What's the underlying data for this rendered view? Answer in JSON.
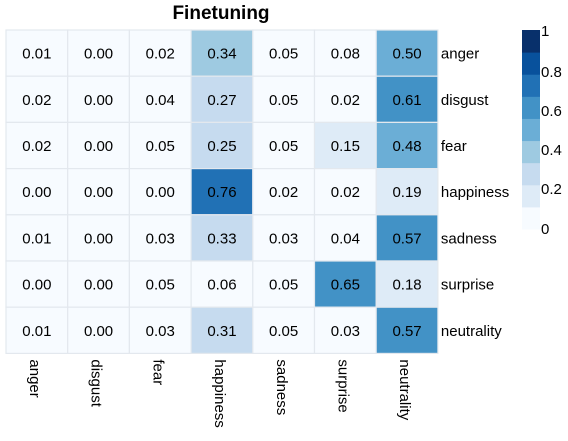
{
  "chart_data": {
    "type": "heatmap",
    "title": "Finetuning",
    "rows": [
      "anger",
      "disgust",
      "fear",
      "happiness",
      "sadness",
      "surprise",
      "neutrality"
    ],
    "columns": [
      "anger",
      "disgust",
      "fear",
      "happiness",
      "sadness",
      "surprise",
      "neutrality"
    ],
    "values": [
      [
        0.01,
        0.0,
        0.02,
        0.34,
        0.05,
        0.08,
        0.5
      ],
      [
        0.02,
        0.0,
        0.04,
        0.27,
        0.05,
        0.02,
        0.61
      ],
      [
        0.02,
        0.0,
        0.05,
        0.25,
        0.05,
        0.15,
        0.48
      ],
      [
        0.0,
        0.0,
        0.0,
        0.76,
        0.02,
        0.02,
        0.19
      ],
      [
        0.01,
        0.0,
        0.03,
        0.33,
        0.03,
        0.04,
        0.57
      ],
      [
        0.0,
        0.0,
        0.05,
        0.06,
        0.05,
        0.65,
        0.18
      ],
      [
        0.01,
        0.0,
        0.03,
        0.31,
        0.05,
        0.03,
        0.57
      ]
    ],
    "value_labels": [
      [
        "0.01",
        "0.00",
        "0.02",
        "0.34",
        "0.05",
        "0.08",
        "0.50"
      ],
      [
        "0.02",
        "0.00",
        "0.04",
        "0.27",
        "0.05",
        "0.02",
        "0.61"
      ],
      [
        "0.02",
        "0.00",
        "0.05",
        "0.25",
        "0.05",
        "0.15",
        "0.48"
      ],
      [
        "0.00",
        "0.00",
        "0.00",
        "0.76",
        "0.02",
        "0.02",
        "0.19"
      ],
      [
        "0.01",
        "0.00",
        "0.03",
        "0.33",
        "0.03",
        "0.04",
        "0.57"
      ],
      [
        "0.00",
        "0.00",
        "0.05",
        "0.06",
        "0.05",
        "0.65",
        "0.18"
      ],
      [
        "0.01",
        "0.00",
        "0.03",
        "0.31",
        "0.05",
        "0.03",
        "0.57"
      ]
    ],
    "colorbar": {
      "ticks": [
        "1",
        "0.8",
        "0.6",
        "0.4",
        "0.2",
        "0"
      ],
      "range": [
        0,
        1
      ],
      "steps": 9,
      "palette": [
        "#f7fbff",
        "#deebf7",
        "#c6dbef",
        "#9ecae1",
        "#6baed6",
        "#4292c6",
        "#2171b5",
        "#08519c",
        "#08306b"
      ]
    },
    "grid_color": "#e3e8ee"
  }
}
